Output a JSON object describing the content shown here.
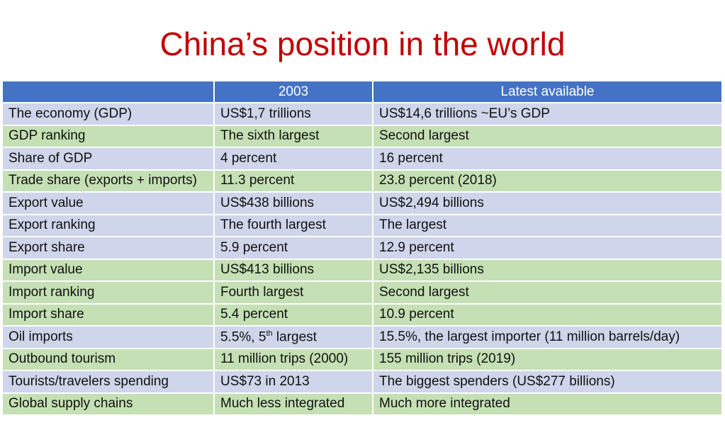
{
  "title": "China’s position in the world",
  "colors": {
    "title": "#C00000",
    "header": "#4472C4",
    "row_lavender": "#CFD5EA",
    "row_green": "#C5E0B4"
  },
  "headers": [
    "",
    "2003",
    "Latest available"
  ],
  "rows": [
    {
      "label": "The economy (GDP)",
      "y2003": "US$1,7 trillions",
      "latest": "US$14,6 trillions ~EU’s GDP",
      "shade": "L"
    },
    {
      "label": "GDP ranking",
      "y2003": "The sixth largest",
      "latest": "Second largest",
      "shade": "G"
    },
    {
      "label": "Share of GDP",
      "y2003": "4 percent",
      "latest": "16 percent",
      "shade": "L"
    },
    {
      "label": "Trade share (exports + imports)",
      "y2003": "11.3 percent",
      "latest": "23.8 percent (2018)",
      "shade": "G"
    },
    {
      "label": "Export value",
      "y2003": "US$438 billions",
      "latest": "US$2,494 billions",
      "shade": "L"
    },
    {
      "label": "Export  ranking",
      "y2003": "The fourth largest",
      "latest": "The largest",
      "shade": "L"
    },
    {
      "label": "Export share",
      "y2003": "5.9 percent",
      "latest": "12.9 percent",
      "shade": "L"
    },
    {
      "label": "Import value",
      "y2003": "US$413 billions",
      "latest": "US$2,135 billions",
      "shade": "G"
    },
    {
      "label": "Import ranking",
      "y2003": "Fourth largest",
      "latest": "Second largest",
      "shade": "G"
    },
    {
      "label": "Import share",
      "y2003": "5.4 percent",
      "latest": "10.9 percent",
      "shade": "G"
    },
    {
      "label": "Oil imports",
      "y2003": "5.5%, 5",
      "y2003_sup": "th",
      "y2003_tail": " largest",
      "latest": "15.5%, the largest importer (11 million barrels/day)",
      "shade": "L"
    },
    {
      "label": "Outbound tourism",
      "y2003": "11 million trips (2000)",
      "latest": "155 million trips (2019)",
      "shade": "G"
    },
    {
      "label": "Tourists/travelers spending",
      "y2003": "US$73 in 2013",
      "latest": "The biggest spenders (US$277 billions)",
      "shade": "L"
    },
    {
      "label": "Global supply chains",
      "y2003": "Much less integrated",
      "latest": "Much more integrated",
      "shade": "G"
    }
  ]
}
